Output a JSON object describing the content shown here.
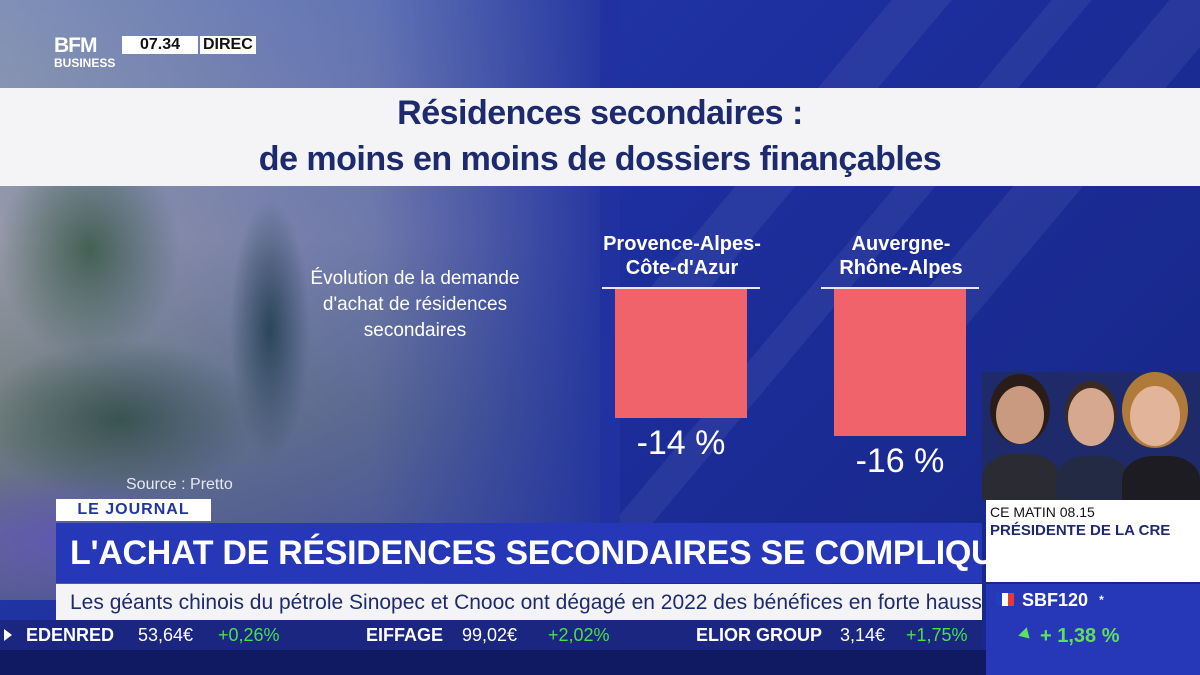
{
  "broadcast": {
    "logo_main": "BFM",
    "logo_sub": "BUSINESS",
    "clock": "07.34",
    "live_label": "DIREC"
  },
  "title": {
    "line1": "Résidences secondaires :",
    "line2": "de moins en moins de dossiers finançables"
  },
  "chart_data": {
    "type": "bar",
    "title": "Évolution de la demande d'achat de résidences secondaires",
    "caption_lines": [
      "Évolution de la demande",
      "d'achat de résidences",
      "secondaires"
    ],
    "categories": [
      {
        "line1": "Provence-Alpes-",
        "line2": "Côte-d'Azur"
      },
      {
        "line1": "Auvergne-",
        "line2": "Rhône-Alpes"
      }
    ],
    "values": [
      -14,
      -16
    ],
    "value_labels": [
      "-14 %",
      "-16 %"
    ],
    "ylim": [
      -18,
      0
    ],
    "bar_color": "#f0636a",
    "source": "Source : Pretto"
  },
  "lower_third": {
    "tag": "LE JOURNAL",
    "headline": "L'ACHAT DE RÉSIDENCES SECONDAIRES SE COMPLIQUE",
    "news_ticker": "Les géants chinois du pétrole Sinopec et Cnooc ont dégagé en 2022 des bénéfices en forte hausse."
  },
  "market_ticker": [
    {
      "name": "EDENRED",
      "price": "53,64€",
      "change": "+0,26%"
    },
    {
      "name": "EIFFAGE",
      "price": "99,02€",
      "change": "+2,02%"
    },
    {
      "name": "ELIOR GROUP",
      "price": "3,14€",
      "change": "+1,75%"
    }
  ],
  "program": {
    "time": "CE MATIN 08.15",
    "title": "PRÉSIDENTE DE LA CRE"
  },
  "index": {
    "name": "SBF120",
    "marker": "*",
    "change": "+ 1,38 %"
  },
  "colors": {
    "brand_blue": "#2637b8",
    "bar_red": "#f0636a",
    "positive_green": "#49e04a"
  }
}
